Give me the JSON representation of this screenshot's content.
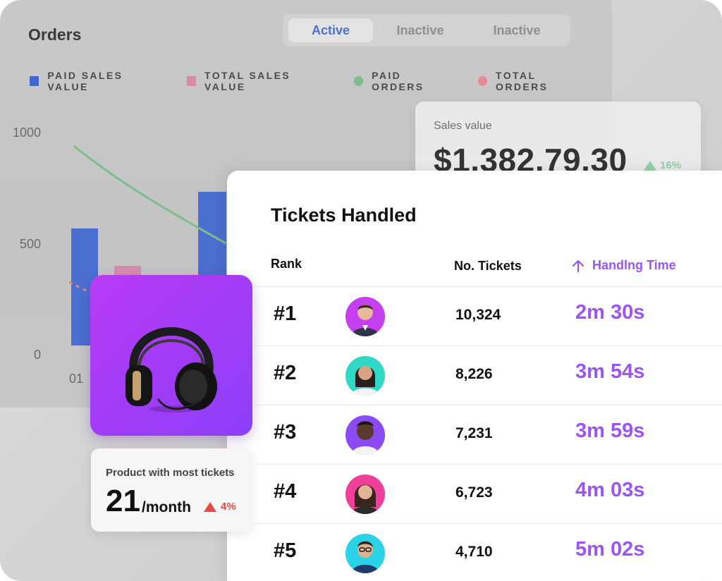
{
  "orders": {
    "title": "Orders",
    "tabs": [
      {
        "label": "Active",
        "active": true
      },
      {
        "label": "Inactive",
        "active": false
      },
      {
        "label": "Inactive",
        "active": false
      }
    ],
    "legend": [
      {
        "label": "PAID SALES VALUE",
        "color": "#3f67cf",
        "marker": "square"
      },
      {
        "label": "TOTAL SALES VALUE",
        "color": "#d98aa6",
        "marker": "square"
      },
      {
        "label": "PAID ORDERS",
        "color": "#7dbd8e",
        "marker": "circle"
      },
      {
        "label": "TOTAL ORDERS",
        "color": "#e68b93",
        "marker": "circle"
      }
    ]
  },
  "chart_data": {
    "type": "bar",
    "categories": [
      "01"
    ],
    "yticks": [
      "1000",
      "500",
      "0"
    ],
    "ylim": [
      0,
      1000
    ],
    "series": [
      {
        "name": "PAID SALES VALUE",
        "values": [
          530
        ]
      },
      {
        "name": "TOTAL SALES VALUE",
        "values": [
          360
        ]
      }
    ],
    "lines": [
      {
        "name": "PAID ORDERS",
        "color": "#7dbd8e"
      },
      {
        "name": "TOTAL ORDERS",
        "color": "#e68b93"
      }
    ]
  },
  "sales": {
    "label": "Sales value",
    "value": "$1,382,79.30",
    "change": "16%",
    "change_color": "#8fd0a6"
  },
  "tickets": {
    "title": "Tickets Handled",
    "headers": {
      "rank": "Rank",
      "count": "No. Tickets",
      "time": "Handlng Time"
    },
    "rows": [
      {
        "rank": "#1",
        "count": "10,324",
        "time": "2m 30s",
        "avatar_bg": "#c53ff0"
      },
      {
        "rank": "#2",
        "count": "8,226",
        "time": "3m 54s",
        "avatar_bg": "#2fd9c5"
      },
      {
        "rank": "#3",
        "count": "7,231",
        "time": "3m 59s",
        "avatar_bg": "#8b4af2"
      },
      {
        "rank": "#4",
        "count": "6,723",
        "time": "4m 03s",
        "avatar_bg": "#ee3f9a"
      },
      {
        "rank": "#5",
        "count": "4,710",
        "time": "5m 02s",
        "avatar_bg": "#2ad3e6"
      }
    ],
    "accent": "#9b55f5"
  },
  "product": {
    "label": "Product with most tickets",
    "value": "21",
    "unit": "/month",
    "change": "4%",
    "change_color": "#e34b4b",
    "icon": "headphones-icon"
  }
}
